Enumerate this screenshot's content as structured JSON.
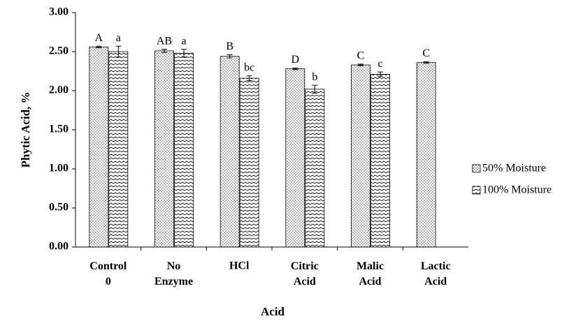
{
  "chart_data": {
    "type": "bar",
    "x_label": "Acid",
    "y_label": "Phytic Acid, %",
    "categories": [
      "Control 0",
      "No Enzyme",
      "HCl",
      "Citric Acid",
      "Malic Acid",
      "Lactic Acid"
    ],
    "series": [
      {
        "name": "50% Moisture",
        "pattern": "dots",
        "color": "#000000",
        "values": [
          2.56,
          2.51,
          2.44,
          2.28,
          2.33,
          2.36
        ],
        "errors": [
          0.01,
          0.02,
          0.02,
          0.01,
          0.01,
          0.01
        ],
        "letters": [
          "A",
          "AB",
          "B",
          "D",
          "C",
          "C"
        ]
      },
      {
        "name": "100% Moisture",
        "pattern": "zigzag",
        "color": "#000000",
        "values": [
          2.5,
          2.48,
          2.16,
          2.02,
          2.21,
          null
        ],
        "errors": [
          0.07,
          0.05,
          0.03,
          0.05,
          0.03,
          null
        ],
        "letters": [
          "a",
          "a",
          "bc",
          "b",
          "c",
          null
        ]
      }
    ],
    "ylim": [
      0,
      3
    ],
    "yticks": [
      {
        "value": 0,
        "label": "0.00"
      },
      {
        "value": 0.5,
        "label": "0.50"
      },
      {
        "value": 1,
        "label": "1.00"
      },
      {
        "value": 1.5,
        "label": "1.50"
      },
      {
        "value": 2,
        "label": "2.00"
      },
      {
        "value": 2.5,
        "label": "2.50"
      },
      {
        "value": 3,
        "label": "3.00"
      }
    ],
    "legend": "right"
  }
}
